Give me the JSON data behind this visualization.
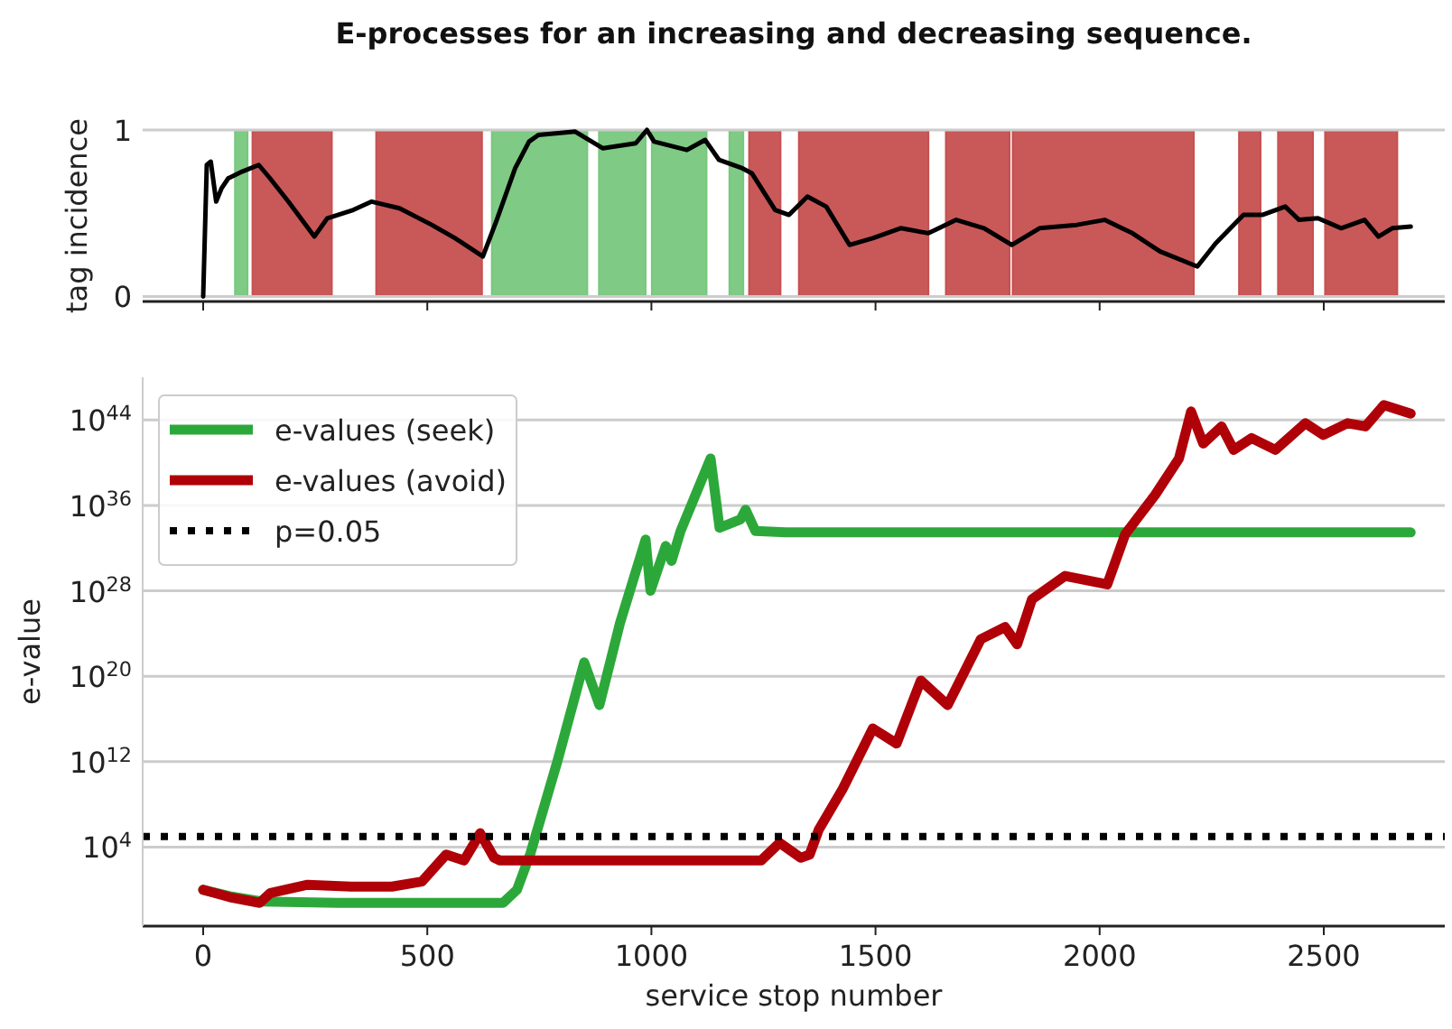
{
  "chart_data": [
    {
      "type": "line",
      "title": "E-processes for an increasing and decreasing sequence.",
      "ylabel": "tag incidence",
      "xlim": [
        -135,
        2770
      ],
      "xticks": [
        0,
        500,
        1000,
        1500,
        2000,
        2500
      ],
      "ylim": [
        -0.03,
        1
      ],
      "yticks": [
        0,
        1
      ],
      "tick_labels": "y",
      "grid": "y",
      "legend": false,
      "series": [
        {
          "color": "#000000",
          "x": [
            0,
            8,
            17,
            29,
            41,
            56,
            87,
            124,
            149,
            190,
            248,
            277,
            335,
            376,
            438,
            510,
            562,
            624,
            655,
            696,
            727,
            748,
            830,
            861,
            892,
            965,
            990,
            1006,
            1079,
            1120,
            1151,
            1203,
            1224,
            1276,
            1307,
            1348,
            1390,
            1442,
            1494,
            1556,
            1618,
            1680,
            1742,
            1804,
            1866,
            1949,
            2011,
            2073,
            2135,
            2218,
            2259,
            2321,
            2363,
            2414,
            2445,
            2487,
            2539,
            2591,
            2622,
            2653,
            2694
          ],
          "values": [
            0,
            0.79,
            0.81,
            0.57,
            0.65,
            0.71,
            0.75,
            0.79,
            0.71,
            0.57,
            0.36,
            0.47,
            0.52,
            0.57,
            0.53,
            0.43,
            0.35,
            0.24,
            0.46,
            0.77,
            0.93,
            0.97,
            0.99,
            0.94,
            0.89,
            0.92,
            1.0,
            0.93,
            0.88,
            0.94,
            0.82,
            0.77,
            0.74,
            0.52,
            0.49,
            0.6,
            0.54,
            0.31,
            0.35,
            0.41,
            0.38,
            0.46,
            0.41,
            0.31,
            0.41,
            0.43,
            0.46,
            0.38,
            0.27,
            0.18,
            0.32,
            0.49,
            0.49,
            0.54,
            0.46,
            0.47,
            0.41,
            0.46,
            0.36,
            0.41,
            0.42
          ]
        }
      ],
      "bands": [
        {
          "axis": "x",
          "from": 71,
          "to": 99,
          "color": "#78c77e"
        },
        {
          "axis": "x",
          "from": 110,
          "to": 287,
          "color": "#c65050"
        },
        {
          "axis": "x",
          "from": 386,
          "to": 622,
          "color": "#c65050"
        },
        {
          "axis": "x",
          "from": 644,
          "to": 857,
          "color": "#78c77e"
        },
        {
          "axis": "x",
          "from": 883,
          "to": 987,
          "color": "#78c77e"
        },
        {
          "axis": "x",
          "from": 1001,
          "to": 1123,
          "color": "#78c77e"
        },
        {
          "axis": "x",
          "from": 1174,
          "to": 1205,
          "color": "#78c77e"
        },
        {
          "axis": "x",
          "from": 1218,
          "to": 1288,
          "color": "#c65050"
        },
        {
          "axis": "x",
          "from": 1329,
          "to": 1618,
          "color": "#c65050"
        },
        {
          "axis": "x",
          "from": 1657,
          "to": 1799,
          "color": "#c65050"
        },
        {
          "axis": "x",
          "from": 1806,
          "to": 2210,
          "color": "#c65050"
        },
        {
          "axis": "x",
          "from": 2311,
          "to": 2359,
          "color": "#c65050"
        },
        {
          "axis": "x",
          "from": 2398,
          "to": 2476,
          "color": "#c65050"
        },
        {
          "axis": "x",
          "from": 2503,
          "to": 2664,
          "color": "#c65050"
        }
      ]
    },
    {
      "type": "line",
      "xlabel": "service stop number",
      "ylabel": "e-value",
      "log": "y",
      "xlim": [
        -135,
        2770
      ],
      "xticks": [
        0,
        500,
        1000,
        1500,
        2000,
        2500
      ],
      "ylim": [
        0.0004,
        1e+48
      ],
      "yticks": [
        {
          "value": 10000,
          "label": "10$^{4}$"
        },
        {
          "value": 1000000000000.0,
          "label": "10$^{12}$"
        },
        {
          "value": 1e+20,
          "label": "10$^{20}$"
        },
        {
          "value": 1e+28,
          "label": "10$^{28}$"
        },
        {
          "value": 1e+36,
          "label": "10$^{36}$"
        },
        {
          "value": 1e+44,
          "label": "10$^{44}$"
        }
      ],
      "grid": "y",
      "legend": "top left",
      "series": [
        {
          "name": "e-values (seek)",
          "color": "#2ca83a",
          "x": [
            0,
            60,
            130,
            300,
            500,
            669,
            700,
            730,
            790,
            850,
            884,
            930,
            987,
            998,
            1032,
            1045,
            1065,
            1132,
            1152,
            1199,
            1210,
            1232,
            1300,
            1600,
            2000,
            2400,
            2694
          ],
          "values": [
            1,
            0.25,
            0.08,
            0.06,
            0.06,
            0.06,
            1,
            2500,
            1000000000000.0,
            2e+21,
            2e+17,
            1e+25,
            6.3e+32,
            1e+28,
            1.6e+32,
            6.3e+30,
            4e+33,
            2.5e+40,
            8e+33,
            5e+34,
            4e+35,
            4e+33,
            3e+33,
            3e+33,
            3e+33,
            3e+33,
            3e+33
          ]
        },
        {
          "name": "e-values (avoid)",
          "color": "#b00008",
          "x": [
            0,
            60,
            126,
            150,
            233,
            330,
            421,
            488,
            542,
            582,
            618,
            649,
            662,
            900,
            1245,
            1286,
            1333,
            1353,
            1373,
            1427,
            1494,
            1547,
            1601,
            1661,
            1735,
            1789,
            1816,
            1849,
            1923,
            2017,
            2057,
            2124,
            2177,
            2204,
            2231,
            2272,
            2299,
            2339,
            2392,
            2459,
            2499,
            2553,
            2593,
            2634,
            2694
          ],
          "values": [
            1,
            0.2,
            0.06,
            0.5,
            3,
            2,
            2,
            6,
            2000,
            560,
            200000,
            1000,
            560,
            560,
            560,
            25000,
            1000,
            2000,
            400000,
            3000000000.0,
            1300000000000000.0,
            50000000000000.0,
            4e+19,
            2e+17,
            3e+23,
            4e+24,
            1e+23,
            1.6e+27,
            2.5e+29,
            4e+28,
            2e+33,
            1e+37,
            2.5e+40,
            6.3e+44,
            6.3e+41,
            2.5e+43,
            1.6e+41,
            2e+42,
            1.6e+41,
            5e+43,
            4e+42,
            5e+43,
            2.5e+43,
            2.5e+45,
            4e+44
          ]
        },
        {
          "name": "p=0.05",
          "color": "#000000",
          "line_style": "dotted",
          "x": [
            -135,
            2770
          ],
          "values": [
            100000,
            100000
          ]
        }
      ]
    }
  ]
}
